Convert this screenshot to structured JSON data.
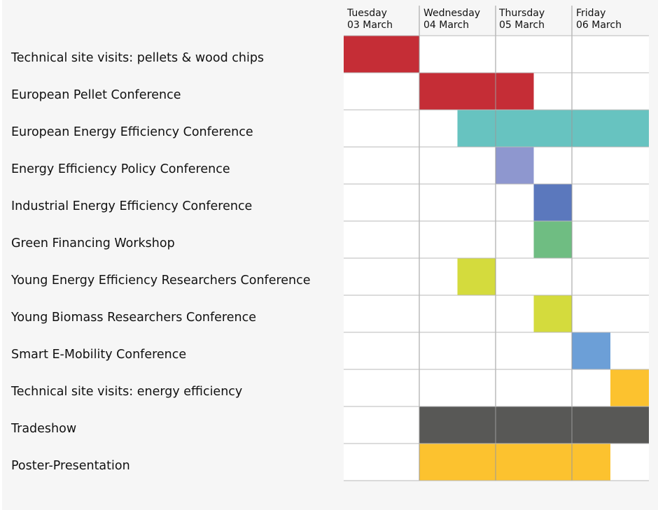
{
  "chart_data": {
    "type": "gantt",
    "days": [
      {
        "weekday": "Tuesday",
        "date": "03 March"
      },
      {
        "weekday": "Wednesday",
        "date": "04 March"
      },
      {
        "weekday": "Thursday",
        "date": "05 March"
      },
      {
        "weekday": "Friday",
        "date": "06 March"
      }
    ],
    "tasks": [
      {
        "label": "Technical site visits: pellets & wood chips",
        "start": 0,
        "end": 1,
        "color": "#c52d36"
      },
      {
        "label": "European Pellet Conference",
        "start": 1,
        "end": 2.5,
        "color": "#c52d36"
      },
      {
        "label": "European Energy Efficiency Conference",
        "start": 1.5,
        "end": 4,
        "color": "#67c3c0"
      },
      {
        "label": "Energy Efficiency Policy Conference",
        "start": 2,
        "end": 2.5,
        "color": "#8e97cf"
      },
      {
        "label": "Industrial Energy Efficiency Conference",
        "start": 2.5,
        "end": 3,
        "color": "#5b78bd"
      },
      {
        "label": "Green Financing Workshop",
        "start": 2.5,
        "end": 3,
        "color": "#6fbd82"
      },
      {
        "label": "Young Energy Efficiency Researchers Conference",
        "start": 1.5,
        "end": 2,
        "color": "#d4db3d"
      },
      {
        "label": "Young Biomass Researchers Conference",
        "start": 2.5,
        "end": 3,
        "color": "#d4db3d"
      },
      {
        "label": "Smart E-Mobility Conference",
        "start": 3,
        "end": 3.5,
        "color": "#6c9fd7"
      },
      {
        "label": "Technical site visits: energy efficiency",
        "start": 3.5,
        "end": 4,
        "color": "#fcc22f"
      },
      {
        "label": "Tradeshow",
        "start": 1,
        "end": 4,
        "color": "#585856"
      },
      {
        "label": "Poster-Presentation",
        "start": 1,
        "end": 3.5,
        "color": "#fcc22f"
      }
    ]
  }
}
